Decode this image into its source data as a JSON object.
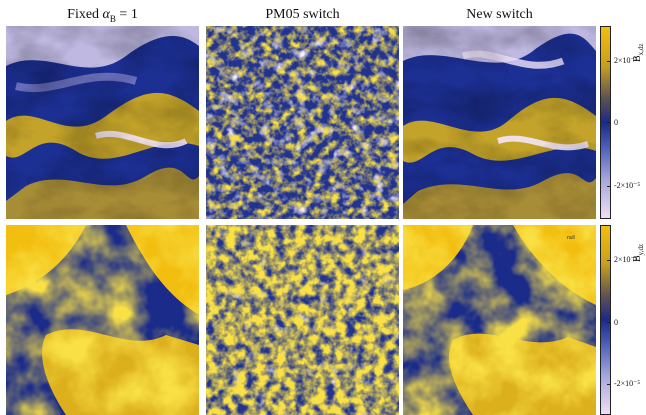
{
  "columns": [
    {
      "title_prefix": "Fixed ",
      "title_symbol": "α",
      "title_sub": "B",
      "title_suffix": " = 1"
    },
    {
      "title": "PM05 switch"
    },
    {
      "title": "New switch"
    }
  ],
  "rows": [
    {
      "colorbar": {
        "label_main": "B",
        "label_sub": "x,dz",
        "ticks": [
          "2×10⁻⁵",
          "0",
          "-2×10⁻⁵"
        ]
      },
      "panels": [
        {
          "name": "fixed-alpha-bx-map"
        },
        {
          "name": "pm05-switch-bx-map"
        },
        {
          "name": "new-switch-bx-map"
        }
      ]
    },
    {
      "colorbar": {
        "label_main": "B",
        "label_sub": "y,dz",
        "ticks": [
          "2×10⁻⁵",
          "0",
          "-2×10⁻⁵"
        ]
      },
      "panels": [
        {
          "name": "fixed-alpha-by-map"
        },
        {
          "name": "pm05-switch-by-map"
        },
        {
          "name": "new-switch-by-map"
        }
      ]
    }
  ],
  "panel_annotation": "null",
  "colors": {
    "positive": "#f2be10",
    "zero": "#1a2a86",
    "negative": "#f1ddf6"
  }
}
